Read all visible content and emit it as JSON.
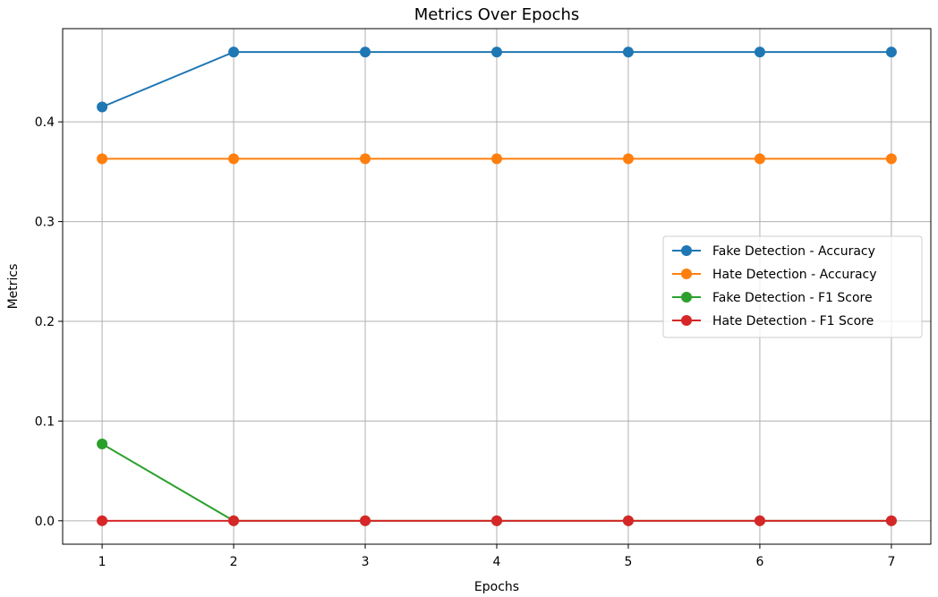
{
  "chart_data": {
    "type": "line",
    "title": "Metrics Over Epochs",
    "xlabel": "Epochs",
    "ylabel": "Metrics",
    "x": [
      1,
      2,
      3,
      4,
      5,
      6,
      7
    ],
    "xticks": [
      1,
      2,
      3,
      4,
      5,
      6,
      7
    ],
    "yticks": [
      0.0,
      0.1,
      0.2,
      0.3,
      0.4
    ],
    "ytick_labels": [
      "0.0",
      "0.1",
      "0.2",
      "0.3",
      "0.4"
    ],
    "xlim": [
      0.7,
      7.3
    ],
    "ylim": [
      -0.0235,
      0.4935
    ],
    "grid": true,
    "legend_position": "center-right",
    "series": [
      {
        "name": "Fake Detection - Accuracy",
        "color": "#1f77b4",
        "values": [
          0.415,
          0.47,
          0.47,
          0.47,
          0.47,
          0.47,
          0.47
        ]
      },
      {
        "name": "Hate Detection - Accuracy",
        "color": "#ff7f0e",
        "values": [
          0.363,
          0.363,
          0.363,
          0.363,
          0.363,
          0.363,
          0.363
        ]
      },
      {
        "name": "Fake Detection - F1 Score",
        "color": "#2ca02c",
        "values": [
          0.077,
          0.0,
          0.0,
          0.0,
          0.0,
          0.0,
          0.0
        ]
      },
      {
        "name": "Hate Detection - F1 Score",
        "color": "#d62728",
        "values": [
          0.0,
          0.0,
          0.0,
          0.0,
          0.0,
          0.0,
          0.0
        ]
      }
    ]
  }
}
